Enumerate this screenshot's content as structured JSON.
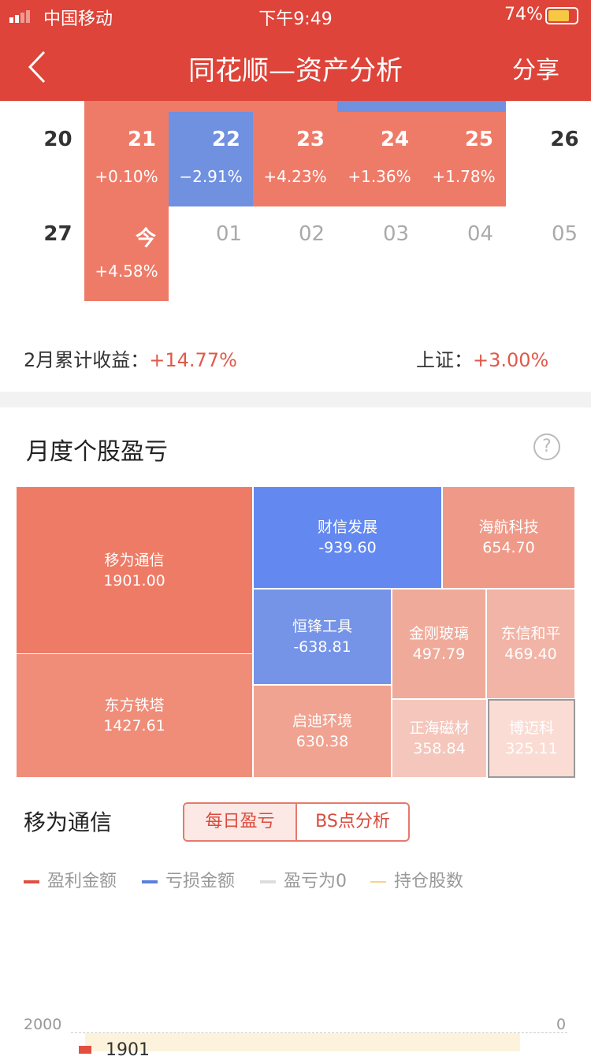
{
  "status_bar": {
    "carrier": "中国移动",
    "time": "下午9:49",
    "battery": "74%"
  },
  "nav": {
    "title": "同花顺—资产分析",
    "share": "分享"
  },
  "calendar": {
    "rows": [
      [
        {
          "day": "20"
        },
        {
          "day": "21",
          "change": "+0.10%"
        },
        {
          "day": "22",
          "change": "−2.91%"
        },
        {
          "day": "23",
          "change": "+4.23%"
        },
        {
          "day": "24",
          "change": "+1.36%"
        },
        {
          "day": "25",
          "change": "+1.78%"
        },
        {
          "day": "26"
        }
      ],
      [
        {
          "day": "27"
        },
        {
          "day": "今",
          "change": "+4.58%"
        },
        {
          "day": "01"
        },
        {
          "day": "02"
        },
        {
          "day": "03"
        },
        {
          "day": "04"
        },
        {
          "day": "05"
        }
      ]
    ]
  },
  "summary": {
    "label": "2月累计收益：",
    "value": "+14.77%",
    "index_label": "上证：",
    "index_value": "+3.00%"
  },
  "section": {
    "title": "月度个股盈亏",
    "help": "?"
  },
  "treemap": {
    "tiles": [
      {
        "name": "移为通信",
        "value": "1901.00"
      },
      {
        "name": "东方铁塔",
        "value": "1427.61"
      },
      {
        "name": "财信发展",
        "value": "-939.60"
      },
      {
        "name": "海航科技",
        "value": "654.70"
      },
      {
        "name": "恒锋工具",
        "value": "-638.81"
      },
      {
        "name": "启迪环境",
        "value": "630.38"
      },
      {
        "name": "金刚玻璃",
        "value": "497.79"
      },
      {
        "name": "东信和平",
        "value": "469.40"
      },
      {
        "name": "正海磁材",
        "value": "358.84"
      },
      {
        "name": "博迈科",
        "value": "325.11"
      }
    ]
  },
  "stock": {
    "title": "移为通信",
    "tabs": [
      "每日盈亏",
      "BS点分析"
    ],
    "legend": [
      "盈利金额",
      "亏损金额",
      "盈亏为0",
      "持仓股数"
    ],
    "axis_left": "2000",
    "axis_right": "0",
    "bar_label": "1901"
  }
}
